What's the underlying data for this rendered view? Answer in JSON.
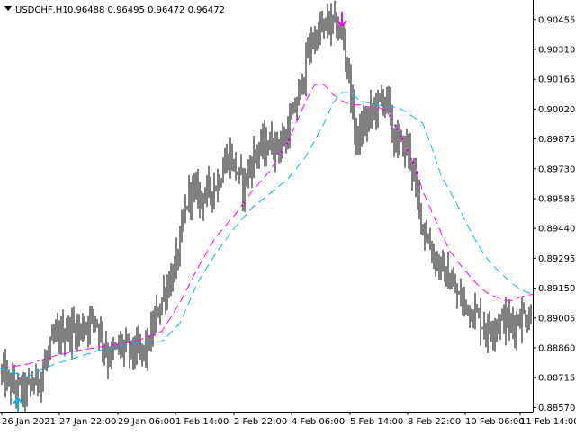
{
  "header": {
    "symbol_timeframe": "USDCHF,H1",
    "ohlc": "0.96488 0.96495 0.96472 0.96472"
  },
  "colors": {
    "background": "#ffffff",
    "bars": "#000000",
    "axis": "#000000",
    "fast_ma": "#ff00ff",
    "slow_ma": "#00b4ff",
    "buy_arrow": "#00b4ff",
    "sell_arrow": "#ff00ff"
  },
  "chart_data": {
    "type": "line",
    "title": "USDCHF,H1",
    "ylim": [
      0.8855,
      0.9055
    ],
    "y_ticks": [
      "0.90455",
      "0.90310",
      "0.90165",
      "0.90020",
      "0.89875",
      "0.89730",
      "0.89585",
      "0.89440",
      "0.89295",
      "0.89150",
      "0.89005",
      "0.88860",
      "0.88715",
      "0.88570"
    ],
    "x_ticks": [
      "26 Jan 2021",
      "27 Jan 22:00",
      "29 Jan 06:00",
      "1 Feb 14:00",
      "2 Feb 22:00",
      "4 Feb 06:00",
      "5 Feb 14:00",
      "8 Feb 22:00",
      "10 Feb 06:00",
      "11 Feb 14:00"
    ],
    "price_path": {
      "x": [
        0,
        12,
        28,
        45,
        60,
        75,
        90,
        105,
        120,
        135,
        150,
        163,
        180,
        195,
        210,
        225,
        240,
        255,
        270,
        285,
        300,
        315,
        330,
        345,
        360,
        370,
        380,
        387,
        395,
        403,
        410,
        420,
        430,
        437,
        445,
        455,
        462,
        470,
        480,
        490,
        500,
        510,
        520,
        530,
        540,
        550,
        560,
        570,
        580,
        592
      ],
      "y": [
        0.8875,
        0.8868,
        0.8865,
        0.8872,
        0.889,
        0.8895,
        0.8895,
        0.8902,
        0.8882,
        0.8887,
        0.8884,
        0.8885,
        0.891,
        0.8925,
        0.8962,
        0.896,
        0.8965,
        0.898,
        0.8965,
        0.8982,
        0.8985,
        0.8985,
        0.9005,
        0.9034,
        0.9042,
        0.9044,
        0.9038,
        0.9022,
        0.8988,
        0.8992,
        0.8998,
        0.9005,
        0.9008,
        0.8988,
        0.8985,
        0.8982,
        0.8963,
        0.8946,
        0.8932,
        0.8925,
        0.8918,
        0.891,
        0.8906,
        0.8902,
        0.8895,
        0.8898,
        0.89,
        0.8897,
        0.8902,
        0.89
      ]
    },
    "series": [
      {
        "x": [
          0,
          30,
          60,
          90,
          120,
          150,
          180,
          200,
          220,
          240,
          260,
          280,
          300,
          320,
          340,
          350,
          360,
          370,
          380,
          390,
          400,
          410,
          420,
          430,
          440,
          450,
          460,
          470,
          480,
          490,
          500,
          510,
          520,
          530,
          540,
          550,
          560,
          570,
          580,
          592
        ],
        "y": [
          0.8876,
          0.8878,
          0.8882,
          0.8885,
          0.8887,
          0.8889,
          0.8894,
          0.8908,
          0.8925,
          0.894,
          0.895,
          0.8962,
          0.8972,
          0.8986,
          0.9006,
          0.9014,
          0.9014,
          0.9009,
          0.9006,
          0.9004,
          0.9004,
          0.9003,
          0.9003,
          0.9001,
          0.8993,
          0.8985,
          0.8975,
          0.8962,
          0.8952,
          0.8942,
          0.8933,
          0.8927,
          0.8922,
          0.8917,
          0.8913,
          0.8911,
          0.8909,
          0.8909,
          0.8911,
          0.8912
        ]
      },
      {
        "x": [
          0,
          30,
          60,
          90,
          120,
          150,
          180,
          200,
          220,
          240,
          260,
          280,
          300,
          320,
          340,
          360,
          370,
          380,
          390,
          400,
          410,
          420,
          430,
          440,
          450,
          460,
          470,
          480,
          490,
          500,
          510,
          520,
          530,
          540,
          550,
          560,
          570,
          580,
          592
        ],
        "y": [
          0.8876,
          0.8872,
          0.8878,
          0.8882,
          0.8886,
          0.8888,
          0.8889,
          0.8898,
          0.8918,
          0.8932,
          0.8944,
          0.8954,
          0.8961,
          0.8968,
          0.8979,
          0.8995,
          0.9005,
          0.901,
          0.901,
          0.9006,
          0.9005,
          0.9004,
          0.9003,
          0.9003,
          0.9001,
          0.8998,
          0.8995,
          0.8983,
          0.897,
          0.8962,
          0.8954,
          0.8945,
          0.8937,
          0.893,
          0.8925,
          0.8921,
          0.8917,
          0.8914,
          0.8912
        ]
      }
    ],
    "arrows": [
      {
        "type": "buy",
        "x": 20,
        "y": 0.8859
      },
      {
        "type": "sell",
        "x": 380,
        "y": 0.9045
      }
    ]
  }
}
